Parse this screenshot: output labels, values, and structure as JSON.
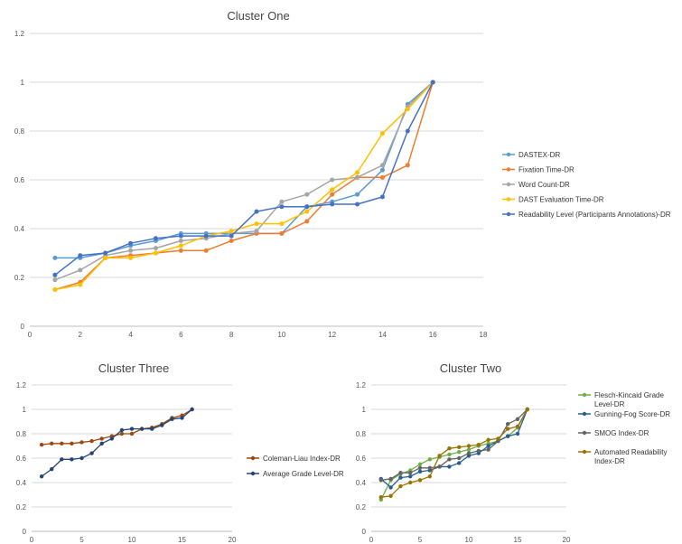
{
  "colors": {
    "grid": "#d9d9d9",
    "axis": "#bfbfbf",
    "tick_text": "#555555",
    "title_text": "#444444"
  },
  "chart_data": [
    {
      "type": "line",
      "title": "Cluster One",
      "xlabel": "",
      "ylabel": "",
      "xlim": [
        0,
        18
      ],
      "ylim": [
        0,
        1.2
      ],
      "xticks": [
        0,
        2,
        4,
        6,
        8,
        10,
        12,
        14,
        16,
        18
      ],
      "yticks": [
        0,
        0.2,
        0.4,
        0.6,
        0.8,
        1,
        1.2
      ],
      "grid": "horizontal",
      "legend_position": "right",
      "x": [
        1,
        2,
        3,
        4,
        5,
        6,
        7,
        8,
        9,
        10,
        11,
        12,
        13,
        14,
        15,
        16
      ],
      "series": [
        {
          "name": "DASTEX-DR",
          "color": "#5b9bd5",
          "values": [
            0.28,
            0.28,
            0.3,
            0.33,
            0.35,
            0.38,
            0.38,
            0.38,
            0.38,
            0.38,
            0.49,
            0.51,
            0.54,
            0.64,
            0.91,
            1.0
          ]
        },
        {
          "name": "Fixation Time-DR",
          "color": "#ed7d31",
          "values": [
            0.15,
            0.18,
            0.28,
            0.29,
            0.3,
            0.31,
            0.31,
            0.35,
            0.38,
            0.38,
            0.43,
            0.54,
            0.61,
            0.61,
            0.66,
            1.0
          ]
        },
        {
          "name": "Word Count-DR",
          "color": "#a5a5a5",
          "values": [
            0.19,
            0.23,
            0.29,
            0.31,
            0.32,
            0.35,
            0.36,
            0.38,
            0.39,
            0.51,
            0.54,
            0.6,
            0.61,
            0.66,
            0.9,
            1.0
          ]
        },
        {
          "name": "DAST Evaluation Time-DR",
          "color": "#ffc000",
          "values": [
            0.15,
            0.17,
            0.28,
            0.28,
            0.3,
            0.33,
            0.37,
            0.39,
            0.42,
            0.42,
            0.47,
            0.56,
            0.63,
            0.79,
            0.89,
            1.0
          ]
        },
        {
          "name": "Readability Level (Participants Annotations)-DR",
          "color": "#4472c4",
          "values": [
            0.21,
            0.29,
            0.3,
            0.34,
            0.36,
            0.37,
            0.37,
            0.37,
            0.47,
            0.49,
            0.49,
            0.5,
            0.5,
            0.53,
            0.8,
            1.0
          ]
        }
      ]
    },
    {
      "type": "line",
      "title": "Cluster Three",
      "xlabel": "",
      "ylabel": "",
      "xlim": [
        0,
        20
      ],
      "ylim": [
        0,
        1.2
      ],
      "xticks": [
        0,
        5,
        10,
        15,
        20
      ],
      "yticks": [
        0,
        0.2,
        0.4,
        0.6,
        0.8,
        1,
        1.2
      ],
      "grid": "horizontal",
      "legend_position": "right",
      "x": [
        1,
        2,
        3,
        4,
        5,
        6,
        7,
        8,
        9,
        10,
        11,
        12,
        13,
        14,
        15,
        16
      ],
      "series": [
        {
          "name": "Coleman-Liau Index-DR",
          "color": "#9e480e",
          "values": [
            0.71,
            0.72,
            0.72,
            0.72,
            0.73,
            0.74,
            0.76,
            0.78,
            0.8,
            0.8,
            0.84,
            0.85,
            0.88,
            0.93,
            0.95,
            1.0
          ]
        },
        {
          "name": "Average Grade Level-DR",
          "color": "#264478",
          "values": [
            0.45,
            0.51,
            0.59,
            0.59,
            0.6,
            0.64,
            0.72,
            0.76,
            0.83,
            0.84,
            0.84,
            0.84,
            0.87,
            0.92,
            0.93,
            1.0
          ]
        }
      ]
    },
    {
      "type": "line",
      "title": "Cluster Two",
      "xlabel": "",
      "ylabel": "",
      "xlim": [
        0,
        20
      ],
      "ylim": [
        0,
        1.2
      ],
      "xticks": [
        0,
        5,
        10,
        15,
        20
      ],
      "yticks": [
        0,
        0.2,
        0.4,
        0.6,
        0.8,
        1,
        1.2
      ],
      "grid": "horizontal",
      "legend_position": "right",
      "x": [
        1,
        2,
        3,
        4,
        5,
        6,
        7,
        8,
        9,
        10,
        11,
        12,
        13,
        14,
        15,
        16
      ],
      "series": [
        {
          "name": "Flesch-Kincaid Grade Level-DR",
          "color": "#70ad47",
          "values": [
            0.26,
            0.42,
            0.47,
            0.5,
            0.55,
            0.59,
            0.61,
            0.63,
            0.65,
            0.67,
            0.7,
            0.72,
            0.74,
            0.78,
            0.85,
            1.0
          ]
        },
        {
          "name": "Gunning-Fog Score-DR",
          "color": "#255e91",
          "values": [
            0.43,
            0.36,
            0.44,
            0.45,
            0.49,
            0.5,
            0.53,
            0.53,
            0.56,
            0.62,
            0.64,
            0.7,
            0.74,
            0.78,
            0.8,
            1.0
          ]
        },
        {
          "name": "SMOG Index-DR",
          "color": "#636363",
          "values": [
            0.42,
            0.43,
            0.48,
            0.48,
            0.52,
            0.52,
            0.53,
            0.59,
            0.6,
            0.64,
            0.66,
            0.67,
            0.74,
            0.88,
            0.92,
            1.0
          ]
        },
        {
          "name": "Automated Readability Index-DR",
          "color": "#997300",
          "values": [
            0.28,
            0.29,
            0.37,
            0.4,
            0.42,
            0.45,
            0.62,
            0.68,
            0.69,
            0.7,
            0.71,
            0.75,
            0.76,
            0.84,
            0.86,
            1.0
          ]
        }
      ]
    }
  ]
}
